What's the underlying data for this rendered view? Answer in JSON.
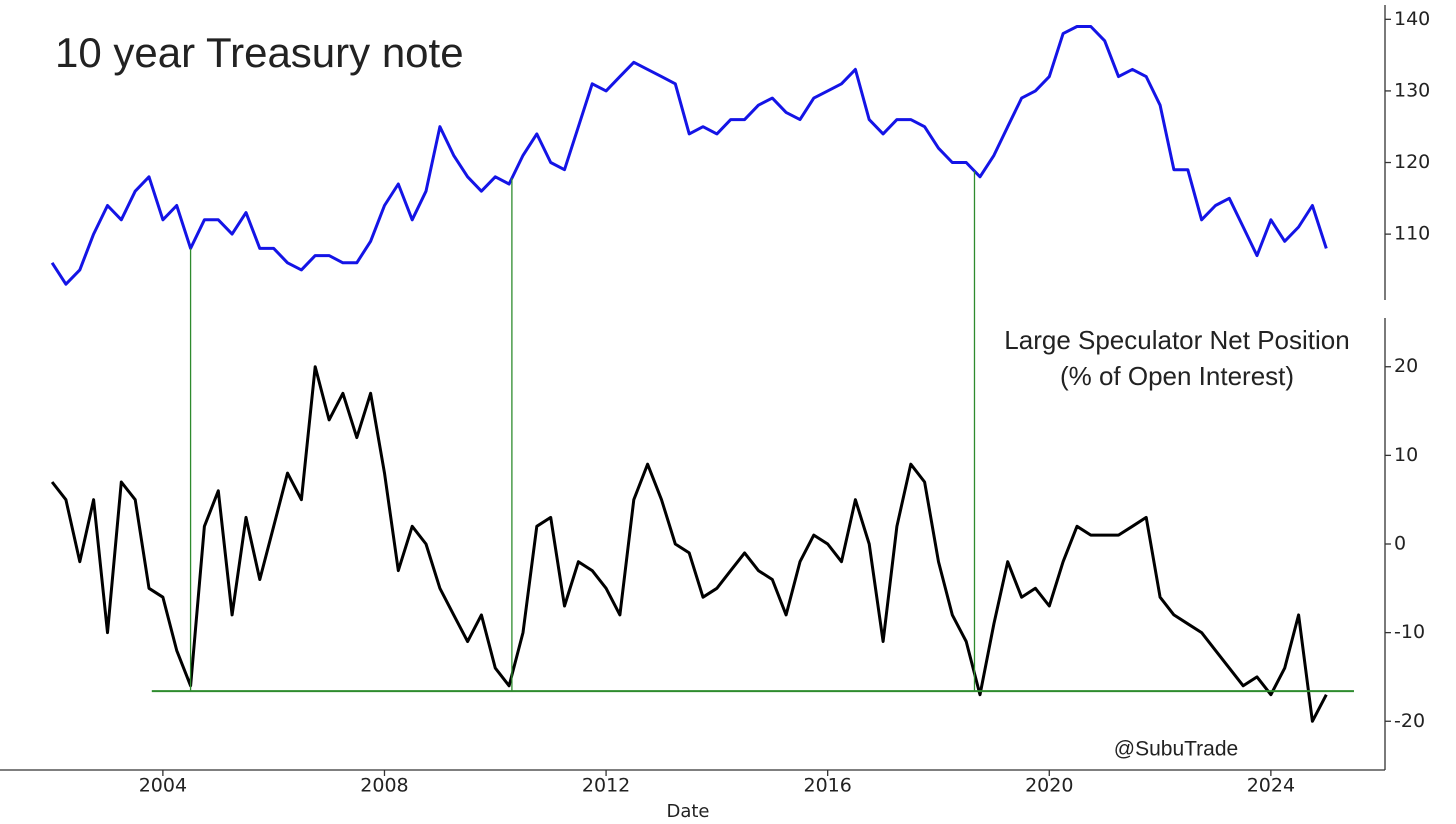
{
  "chart_data": [
    {
      "type": "line",
      "title": "10 year Treasury note",
      "x": [
        2002.0,
        2002.25,
        2002.5,
        2002.75,
        2003.0,
        2003.25,
        2003.5,
        2003.75,
        2004.0,
        2004.25,
        2004.5,
        2004.75,
        2005.0,
        2005.25,
        2005.5,
        2005.75,
        2006.0,
        2006.25,
        2006.5,
        2006.75,
        2007.0,
        2007.25,
        2007.5,
        2007.75,
        2008.0,
        2008.25,
        2008.5,
        2008.75,
        2009.0,
        2009.25,
        2009.5,
        2009.75,
        2010.0,
        2010.25,
        2010.5,
        2010.75,
        2011.0,
        2011.25,
        2011.5,
        2011.75,
        2012.0,
        2012.25,
        2012.5,
        2012.75,
        2013.0,
        2013.25,
        2013.5,
        2013.75,
        2014.0,
        2014.25,
        2014.5,
        2014.75,
        2015.0,
        2015.25,
        2015.5,
        2015.75,
        2016.0,
        2016.25,
        2016.5,
        2016.75,
        2017.0,
        2017.25,
        2017.5,
        2017.75,
        2018.0,
        2018.25,
        2018.5,
        2018.75,
        2019.0,
        2019.25,
        2019.5,
        2019.75,
        2020.0,
        2020.25,
        2020.5,
        2020.75,
        2021.0,
        2021.25,
        2021.5,
        2021.75,
        2022.0,
        2022.25,
        2022.5,
        2022.75,
        2023.0,
        2023.25,
        2023.5,
        2023.75,
        2024.0,
        2024.25,
        2024.5,
        2024.75,
        2025.0
      ],
      "series": [
        {
          "color": "#1414e6",
          "values": [
            106,
            103,
            105,
            110,
            114,
            112,
            116,
            118,
            112,
            114,
            108,
            112,
            112,
            110,
            113,
            108,
            108,
            106,
            105,
            107,
            107,
            106,
            106,
            109,
            114,
            117,
            112,
            116,
            125,
            121,
            118,
            116,
            118,
            117,
            121,
            124,
            120,
            119,
            125,
            131,
            130,
            132,
            134,
            133,
            132,
            131,
            124,
            125,
            124,
            126,
            126,
            128,
            129,
            127,
            126,
            129,
            130,
            131,
            133,
            126,
            124,
            126,
            126,
            125,
            122,
            120,
            120,
            118,
            121,
            125,
            129,
            130,
            132,
            138,
            139,
            139,
            137,
            132,
            133,
            132,
            128,
            119,
            119,
            112,
            114,
            115,
            111,
            107,
            112,
            109,
            111,
            114,
            108
          ]
        }
      ],
      "xlim": [
        2001.06,
        2026.06
      ],
      "ylim": [
        100.8,
        142
      ],
      "yticks": [
        110,
        120,
        130,
        140
      ]
    },
    {
      "type": "line",
      "annotation": [
        "Large Speculator Net Position",
        "(% of Open Interest)"
      ],
      "watermark": "@SubuTrade",
      "xlabel": "Date",
      "x": [
        2002.0,
        2002.25,
        2002.5,
        2002.75,
        2003.0,
        2003.25,
        2003.5,
        2003.75,
        2004.0,
        2004.25,
        2004.5,
        2004.75,
        2005.0,
        2005.25,
        2005.5,
        2005.75,
        2006.0,
        2006.25,
        2006.5,
        2006.75,
        2007.0,
        2007.25,
        2007.5,
        2007.75,
        2008.0,
        2008.25,
        2008.5,
        2008.75,
        2009.0,
        2009.25,
        2009.5,
        2009.75,
        2010.0,
        2010.25,
        2010.5,
        2010.75,
        2011.0,
        2011.25,
        2011.5,
        2011.75,
        2012.0,
        2012.25,
        2012.5,
        2012.75,
        2013.0,
        2013.25,
        2013.5,
        2013.75,
        2014.0,
        2014.25,
        2014.5,
        2014.75,
        2015.0,
        2015.25,
        2015.5,
        2015.75,
        2016.0,
        2016.25,
        2016.5,
        2016.75,
        2017.0,
        2017.25,
        2017.5,
        2017.75,
        2018.0,
        2018.25,
        2018.5,
        2018.75,
        2019.0,
        2019.25,
        2019.5,
        2019.75,
        2020.0,
        2020.25,
        2020.5,
        2020.75,
        2021.0,
        2021.25,
        2021.5,
        2021.75,
        2022.0,
        2022.25,
        2022.5,
        2022.75,
        2023.0,
        2023.25,
        2023.5,
        2023.75,
        2024.0,
        2024.25,
        2024.5,
        2024.75,
        2025.0
      ],
      "series": [
        {
          "color": "#000000",
          "values": [
            7,
            5,
            -2,
            5,
            -10,
            7,
            5,
            -5,
            -6,
            -12,
            -16,
            2,
            6,
            -8,
            3,
            -4,
            2,
            8,
            5,
            20,
            14,
            17,
            12,
            17,
            8,
            -3,
            2,
            0,
            -5,
            -8,
            -11,
            -8,
            -14,
            -16,
            -10,
            2,
            3,
            -7,
            -2,
            -3,
            -5,
            -8,
            5,
            9,
            5,
            0,
            -1,
            -6,
            -5,
            -3,
            -1,
            -3,
            -4,
            -8,
            -2,
            1,
            0,
            -2,
            5,
            0,
            -11,
            2,
            9,
            7,
            -2,
            -8,
            -11,
            -17,
            -9,
            -2,
            -6,
            -5,
            -7,
            -2,
            2,
            1,
            1,
            1,
            2,
            3,
            -6,
            -8,
            -9,
            -10,
            -12,
            -14,
            -16,
            -15,
            -17,
            -14,
            -8,
            -20,
            -17
          ]
        }
      ],
      "xlim": [
        2001.06,
        2026.06
      ],
      "ylim": [
        -25.5,
        25.5
      ],
      "yticks": [
        -20,
        -10,
        0,
        10,
        20
      ],
      "xticks": [
        2004,
        2008,
        2012,
        2016,
        2020,
        2024
      ],
      "reference_color": "#2e8b2e",
      "hline": {
        "value": -16.6,
        "x": [
          2003.8,
          2025.5
        ]
      },
      "vlines": [
        2004.5,
        2010.3,
        2018.65
      ]
    }
  ]
}
